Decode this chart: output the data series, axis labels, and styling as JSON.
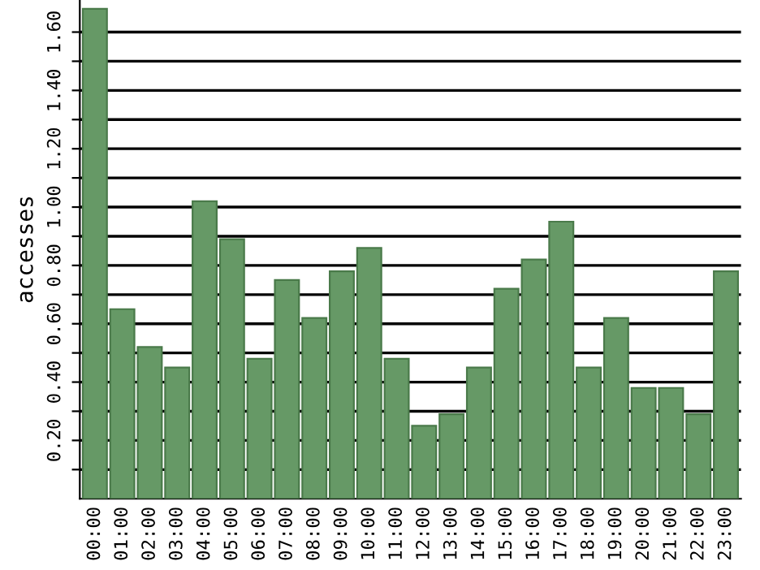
{
  "chart_data": {
    "type": "bar",
    "ylabel": "accesses",
    "categories": [
      "00:00",
      "01:00",
      "02:00",
      "03:00",
      "04:00",
      "05:00",
      "06:00",
      "07:00",
      "08:00",
      "09:00",
      "10:00",
      "11:00",
      "12:00",
      "13:00",
      "14:00",
      "15:00",
      "16:00",
      "17:00",
      "18:00",
      "19:00",
      "20:00",
      "21:00",
      "22:00",
      "23:00"
    ],
    "values": [
      1.68,
      0.65,
      0.52,
      0.45,
      1.02,
      0.89,
      0.48,
      0.75,
      0.62,
      0.78,
      0.86,
      0.48,
      0.25,
      0.29,
      0.45,
      0.72,
      0.82,
      0.95,
      0.45,
      0.62,
      0.38,
      0.38,
      0.29,
      0.78
    ],
    "color": "#669966",
    "ylim": [
      0,
      1.71
    ],
    "yticks": [
      {
        "value": 0.1,
        "label": null
      },
      {
        "value": 0.2,
        "label": "0.20"
      },
      {
        "value": 0.3,
        "label": null
      },
      {
        "value": 0.4,
        "label": "0.40"
      },
      {
        "value": 0.5,
        "label": null
      },
      {
        "value": 0.6,
        "label": "0.60"
      },
      {
        "value": 0.7,
        "label": null
      },
      {
        "value": 0.8,
        "label": "0.80"
      },
      {
        "value": 0.9,
        "label": null
      },
      {
        "value": 1.0,
        "label": "1.00"
      },
      {
        "value": 1.1,
        "label": null
      },
      {
        "value": 1.2,
        "label": "1.20"
      },
      {
        "value": 1.3,
        "label": null
      },
      {
        "value": 1.4,
        "label": "1.40"
      },
      {
        "value": 1.5,
        "label": null
      },
      {
        "value": 1.6,
        "label": "1.60"
      }
    ],
    "grid": "y"
  }
}
